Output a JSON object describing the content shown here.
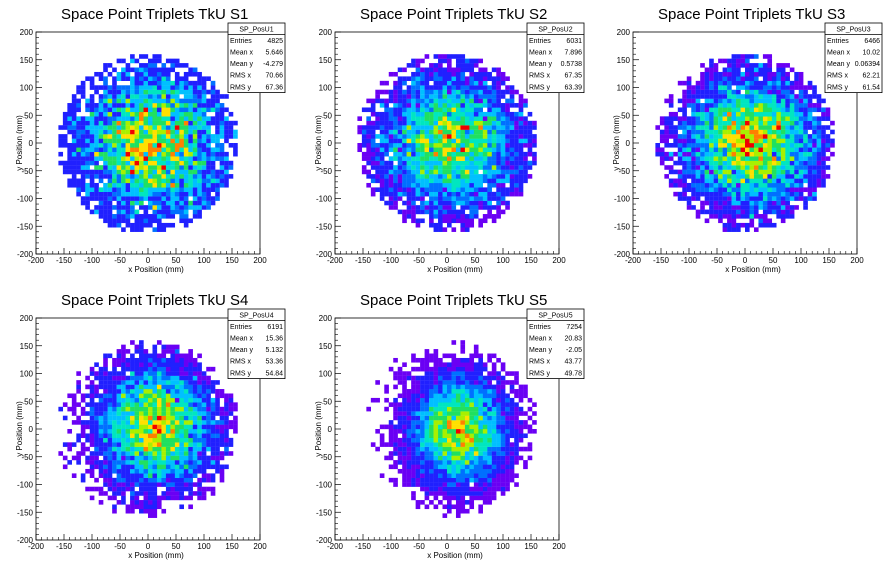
{
  "chart_data": [
    {
      "type": "heatmap",
      "title": "Space Point Triplets TkU S1",
      "xlabel": "x Position (mm)",
      "ylabel": "y Position (mm)",
      "xlim": [
        -200,
        200
      ],
      "ylim": [
        -200,
        200
      ],
      "xticks": [
        "-200",
        "-150",
        "-100",
        "-50",
        "0",
        "50",
        "100",
        "150",
        "200"
      ],
      "yticks": [
        "-200",
        "-150",
        "-100",
        "-50",
        "0",
        "50",
        "100",
        "150",
        "200"
      ],
      "stats": {
        "name": "SP_PosU1",
        "rows": [
          {
            "label": "Entries",
            "value": "4825"
          },
          {
            "label": "Mean x",
            "value": "5.646"
          },
          {
            "label": "Mean y",
            "value": "-4.279"
          },
          {
            "label": "RMS x",
            "value": "70.66"
          },
          {
            "label": "RMS y",
            "value": "67.36"
          }
        ]
      },
      "distribution": {
        "entries": 4825,
        "mean_x": 5.646,
        "mean_y": -4.279,
        "rms_x": 70.66,
        "rms_y": 67.36,
        "radius": 160
      }
    },
    {
      "type": "heatmap",
      "title": "Space Point Triplets TkU S2",
      "xlabel": "x Position (mm)",
      "ylabel": "y Position (mm)",
      "xlim": [
        -200,
        200
      ],
      "ylim": [
        -200,
        200
      ],
      "xticks": [
        "-200",
        "-150",
        "-100",
        "-50",
        "0",
        "50",
        "100",
        "150",
        "200"
      ],
      "yticks": [
        "-200",
        "-150",
        "-100",
        "-50",
        "0",
        "50",
        "100",
        "150",
        "200"
      ],
      "stats": {
        "name": "SP_PosU2",
        "rows": [
          {
            "label": "Entries",
            "value": "6031"
          },
          {
            "label": "Mean x",
            "value": "7.896"
          },
          {
            "label": "Mean y",
            "value": "0.5738"
          },
          {
            "label": "RMS x",
            "value": "67.35"
          },
          {
            "label": "RMS y",
            "value": "63.39"
          }
        ]
      },
      "distribution": {
        "entries": 6031,
        "mean_x": 7.896,
        "mean_y": 0.5738,
        "rms_x": 67.35,
        "rms_y": 63.39,
        "radius": 160
      }
    },
    {
      "type": "heatmap",
      "title": "Space Point Triplets TkU S3",
      "xlabel": "x Position (mm)",
      "ylabel": "y Position (mm)",
      "xlim": [
        -200,
        200
      ],
      "ylim": [
        -200,
        200
      ],
      "xticks": [
        "-200",
        "-150",
        "-100",
        "-50",
        "0",
        "50",
        "100",
        "150",
        "200"
      ],
      "yticks": [
        "-200",
        "-150",
        "-100",
        "-50",
        "0",
        "50",
        "100",
        "150",
        "200"
      ],
      "stats": {
        "name": "SP_PosU3",
        "rows": [
          {
            "label": "Entries",
            "value": "6466"
          },
          {
            "label": "Mean x",
            "value": "10.02"
          },
          {
            "label": "Mean y",
            "value": "0.06394"
          },
          {
            "label": "RMS x",
            "value": "62.21"
          },
          {
            "label": "RMS y",
            "value": "61.54"
          }
        ]
      },
      "distribution": {
        "entries": 6466,
        "mean_x": 10.02,
        "mean_y": 0.06394,
        "rms_x": 62.21,
        "rms_y": 61.54,
        "radius": 160
      }
    },
    {
      "type": "heatmap",
      "title": "Space Point Triplets TkU S4",
      "xlabel": "x Position (mm)",
      "ylabel": "y Position (mm)",
      "xlim": [
        -200,
        200
      ],
      "ylim": [
        -200,
        200
      ],
      "xticks": [
        "-200",
        "-150",
        "-100",
        "-50",
        "0",
        "50",
        "100",
        "150",
        "200"
      ],
      "yticks": [
        "-200",
        "-150",
        "-100",
        "-50",
        "0",
        "50",
        "100",
        "150",
        "200"
      ],
      "stats": {
        "name": "SP_PosU4",
        "rows": [
          {
            "label": "Entries",
            "value": "6191"
          },
          {
            "label": "Mean x",
            "value": "15.36"
          },
          {
            "label": "Mean y",
            "value": "5.132"
          },
          {
            "label": "RMS x",
            "value": "53.36"
          },
          {
            "label": "RMS y",
            "value": "54.84"
          }
        ]
      },
      "distribution": {
        "entries": 6191,
        "mean_x": 15.36,
        "mean_y": 5.132,
        "rms_x": 53.36,
        "rms_y": 54.84,
        "radius": 160
      }
    },
    {
      "type": "heatmap",
      "title": "Space Point Triplets TkU S5",
      "xlabel": "x Position (mm)",
      "ylabel": "y Position (mm)",
      "xlim": [
        -200,
        200
      ],
      "ylim": [
        -200,
        200
      ],
      "xticks": [
        "-200",
        "-150",
        "-100",
        "-50",
        "0",
        "50",
        "100",
        "150",
        "200"
      ],
      "yticks": [
        "-200",
        "-150",
        "-100",
        "-50",
        "0",
        "50",
        "100",
        "150",
        "200"
      ],
      "stats": {
        "name": "SP_PosU5",
        "rows": [
          {
            "label": "Entries",
            "value": "7254"
          },
          {
            "label": "Mean x",
            "value": "20.83"
          },
          {
            "label": "Mean y",
            "value": "-2.05"
          },
          {
            "label": "RMS x",
            "value": "43.77"
          },
          {
            "label": "RMS y",
            "value": "49.78"
          }
        ]
      },
      "distribution": {
        "entries": 7254,
        "mean_x": 20.83,
        "mean_y": -2.05,
        "rms_x": 43.77,
        "rms_y": 49.78,
        "radius": 160
      }
    }
  ],
  "colors": {
    "palette": [
      "#6a00f4",
      "#2020ff",
      "#0070ff",
      "#00c0ff",
      "#00e6c0",
      "#20e060",
      "#a8f000",
      "#ffe000",
      "#ff8000",
      "#f00000"
    ],
    "axis": "#000000",
    "background": "#ffffff"
  }
}
